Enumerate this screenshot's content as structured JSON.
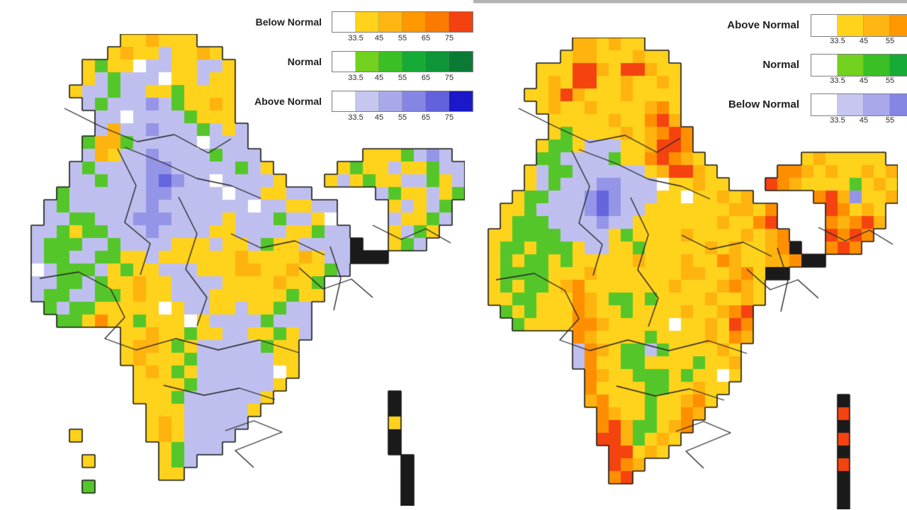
{
  "page": {
    "background": "#FFFFFF",
    "top_bar_color": "#B3B3B3"
  },
  "palette": {
    "y": "#FFD21C",
    "a": "#FFB30F",
    "o": "#FF8F00",
    "r": "#F4430F",
    "g": "#55C62A",
    "l": "#BFBFEF",
    "b": "#9595E8",
    "B": "#6565DE",
    "k": "#1A1A1A",
    "w": "#FFFFFF"
  },
  "panels": [
    {
      "name": "probability-forecast-map-left",
      "legend": {
        "rows": [
          {
            "label": "Below Normal",
            "colors": [
              "#FFFFFF",
              "#FFD21C",
              "#FFB612",
              "#FF9800",
              "#FB7A00",
              "#F5400F"
            ],
            "ticks": [
              "33.5",
              "45",
              "55",
              "65",
              "75"
            ]
          },
          {
            "label": "Normal",
            "colors": [
              "#FFFFFF",
              "#72D01E",
              "#3ABF24",
              "#16AB36",
              "#0E9639",
              "#0B7A34"
            ],
            "ticks": [
              "33.5",
              "45",
              "55",
              "65",
              "75"
            ]
          },
          {
            "label": "Above Normal",
            "colors": [
              "#FFFFFF",
              "#C6C6F0",
              "#A8A8EA",
              "#8585E4",
              "#6262DC",
              "#1A18C8"
            ],
            "ticks": [
              "33.5",
              "45",
              "55",
              "65",
              "75"
            ]
          }
        ]
      },
      "map": {
        "grid": [
          "........yyayyy.....................",
          ".......yayylyyay...................",
          ".....ygyywllyylly..................",
          ".....ylglllwyylyy..................",
          "....yllgllyygyyyy..................",
          ".....lglllblgyyay..................",
          "......llwllllgyyy..................",
          "......lallblllglyl.................",
          ".....gaaglllllwlll.................",
          ".....layllbllllglll........yyyglbl.",
          "....lgllllbblllllgly.....ygyylyygll",
          "....llglllbBbllwlllly...ylygyyllgyl",
          "...gllllllbbllllwllyyll.....lgyylyg",
          "..lgllllllblllllllwllyyll....ylylg.",
          "..llgglllbbbllllylllgllyw....lyygl.",
          ".llgygglllbllllyyllllyygll...ylgy..",
          ".lgggllgllllyyylyylgyyllllk..ygl...",
          ".lggllggyylyyyyyyayyyyayllkkk......",
          ".wlggglygyylllyyyaayyayygl.........",
          ".llgglgyyayyllllyyyyayyg...........",
          ".lggllggyayylllyyyyyygyy...........",
          "..glggyyyyywyllyylyygll............",
          "...ggyoyygyyywyllllglll............",
          "........yyayygyyllyygyl............",
          "........yaaygylllllgyy.............",
          "........yayyygllllllyy.............",
          ".........yaygyllllllwy.............",
          ".........yyyyglllllly..............",
          ".........yyyglllllly.........k.....",
          "..........yyyllllly..........k.....",
          "..........yaylllll...........y.....",
          "....y.....yayllll............k.....",
          "...........yglll.............k.....",
          ".....y.....ygl................k....",
          "...........yy.................k....",
          ".....g........................k....",
          "..............................k...."
        ],
        "borders": [
          [
            65,
            105,
            115,
            130,
            168,
            152,
            220,
            142,
            268,
            168,
            300,
            148
          ],
          [
            150,
            160,
            205,
            182,
            252,
            204,
            300,
            214,
            342,
            232
          ],
          [
            140,
            162,
            166,
            214,
            150,
            266,
            186,
            296,
            172,
            340
          ],
          [
            226,
            230,
            252,
            282,
            236,
            332,
            266,
            372,
            252,
            412
          ],
          [
            30,
            345,
            85,
            336,
            130,
            360,
            150,
            400,
            122,
            430,
            166,
            446
          ],
          [
            166,
            446,
            222,
            430,
            282,
            446,
            340,
            432,
            396,
            450
          ],
          [
            205,
            496,
            262,
            510,
            312,
            500,
            362,
            516
          ],
          [
            292,
            560,
            332,
            546,
            372,
            562,
            306,
            588,
            332,
            612
          ],
          [
            396,
            330,
            430,
            360,
            470,
            346,
            500,
            372
          ],
          [
            300,
            282,
            342,
            302,
            390,
            292,
            432,
            312
          ],
          [
            500,
            270,
            540,
            290,
            575,
            275,
            610,
            295
          ],
          [
            440,
            300,
            455,
            345,
            445,
            390
          ]
        ]
      }
    },
    {
      "name": "probability-forecast-map-right",
      "legend": {
        "rows": [
          {
            "label": "Above Normal",
            "colors": [
              "#FFFFFF",
              "#FFD21C",
              "#FFB612",
              "#FF9800"
            ],
            "ticks": [
              "33.5",
              "45",
              "55"
            ]
          },
          {
            "label": "Normal",
            "colors": [
              "#FFFFFF",
              "#72D01E",
              "#3ABF24",
              "#16AB36"
            ],
            "ticks": [
              "33.5",
              "45",
              "55"
            ]
          },
          {
            "label": "Below Normal",
            "colors": [
              "#FFFFFF",
              "#C6C6F0",
              "#A8A8EA",
              "#8585E4"
            ],
            "ticks": [
              "33.5",
              "45",
              "55"
            ]
          }
        ]
      },
      "map": {
        "grid": [
          "........aayayy.....................",
          ".......yaayyyayy...................",
          ".....yyyrrayrrayy..................",
          ".....yayrryyayyay..................",
          "....yyarayyyayyyy..................",
          ".....yayyayyyyaoy..................",
          "......yyyyyayyora..................",
          "......ygyyyyayaoro.................",
          ".....yggylllyyarro.................",
          ".....ggllllgyyoroay........yayyyyy.",
          "....ylggllllllyarray.....ooayayyaya",
          "....ylglllbblllwyyayy...roayyyygyay",
          "...ygglllbBblllyywyyaya.....orabyya",
          "..yygllllbBbllyyyyyyyaayo....royay.",
          "..ygggllllbllyyyyyyyayyor....oaora.",
          ".yyggggllllygyyyyayyyyayao...roro..",
          ".yggygggyllyygyyyyyayayyaok..oro...",
          ".ygyggygyyyyyayyyayyoayyaaokk......",
          ".yggggyyyayyyyyyyaayyaoykk.........",
          ".ygyggyaoyyyyyyyayyyaoay...........",
          ".yyggyyyoayggygyyyyayyay...........",
          "..gygyyyoayygyyyyayyaor............",
          "...gyyyyooayyyyywyyayro............",
          "........oayyyygyyyyayoa............",
          "........loaygglgyyyyay.............",
          "........loyyggyyyygyya.............",
          ".........oayygggygyywy.............",
          ".........oyyyyggyyayy..............",
          ".........aoyyygyyaoy..........k....",
          "..........oayygyyoa...........r....",
          "..........oraggyao............k....",
          "..........rragyay.............r....",
          "...........rryay..............k....",
          "...........roa................r....",
          "...........or.................k....",
          "..............................k....",
          "..............................k...."
        ],
        "borders": [
          [
            60,
            100,
            110,
            125,
            160,
            148,
            210,
            138,
            255,
            162,
            288,
            142
          ],
          [
            145,
            158,
            198,
            178,
            243,
            200,
            290,
            210,
            330,
            228
          ],
          [
            135,
            160,
            160,
            210,
            145,
            262,
            178,
            292,
            165,
            336
          ],
          [
            218,
            226,
            243,
            278,
            228,
            328,
            257,
            368,
            243,
            408
          ],
          [
            28,
            342,
            82,
            333,
            125,
            357,
            145,
            397,
            118,
            427,
            160,
            442
          ],
          [
            160,
            442,
            214,
            427,
            272,
            442,
            328,
            428,
            382,
            446
          ],
          [
            198,
            492,
            253,
            506,
            301,
            496,
            350,
            512
          ],
          [
            282,
            556,
            321,
            542,
            359,
            558,
            296,
            584,
            321,
            608
          ],
          [
            382,
            327,
            415,
            356,
            454,
            342,
            483,
            368
          ],
          [
            290,
            279,
            330,
            299,
            377,
            289,
            417,
            309
          ],
          [
            483,
            268,
            521,
            287,
            555,
            272,
            588,
            292
          ],
          [
            425,
            297,
            440,
            342,
            430,
            387
          ]
        ]
      }
    }
  ]
}
